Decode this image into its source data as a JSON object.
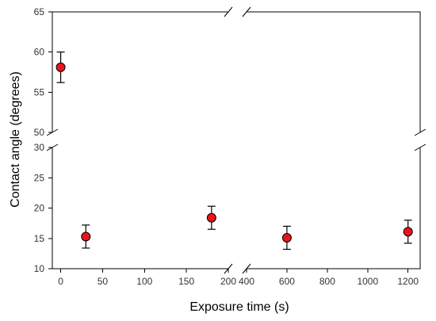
{
  "chart_data": {
    "type": "scatter",
    "xlabel": "Exposure time (s)",
    "ylabel": "Contact angle (degrees)",
    "x_segments": [
      {
        "range": [
          -10,
          200
        ],
        "ticks": [
          0,
          50,
          100,
          150,
          200
        ]
      },
      {
        "range": [
          400,
          1260
        ],
        "ticks": [
          400,
          600,
          800,
          1000,
          1200
        ]
      }
    ],
    "y_segments": [
      {
        "range": [
          10,
          30
        ],
        "ticks": [
          10,
          15,
          20,
          25,
          30
        ]
      },
      {
        "range": [
          50,
          65
        ],
        "ticks": [
          50,
          55,
          60,
          65
        ]
      }
    ],
    "x_tick_labels": [
      "0",
      "50",
      "100",
      "150",
      "200",
      "400",
      "600",
      "800",
      "1000",
      "1200"
    ],
    "y_tick_labels": [
      "10",
      "15",
      "20",
      "25",
      "30",
      "50",
      "55",
      "60",
      "65"
    ],
    "marker_color": "#e8141b",
    "series": [
      {
        "points": [
          {
            "x": 0,
            "y": 58.1,
            "err": 1.9
          },
          {
            "x": 30,
            "y": 15.3,
            "err": 1.9
          },
          {
            "x": 180,
            "y": 18.4,
            "err": 1.9
          },
          {
            "x": 600,
            "y": 15.1,
            "err": 1.9
          },
          {
            "x": 1200,
            "y": 16.1,
            "err": 1.9
          }
        ]
      }
    ],
    "grid": false,
    "legend": "none"
  }
}
